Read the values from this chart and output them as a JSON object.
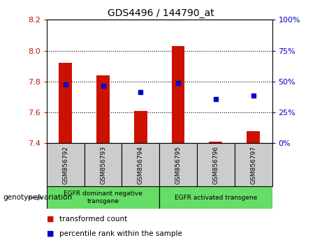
{
  "title": "GDS4496 / 144790_at",
  "samples": [
    "GSM856792",
    "GSM856793",
    "GSM856794",
    "GSM856795",
    "GSM856796",
    "GSM856797"
  ],
  "bar_base": 7.4,
  "bar_tops": [
    7.92,
    7.84,
    7.61,
    8.03,
    7.41,
    7.48
  ],
  "blue_dots": [
    7.78,
    7.77,
    7.73,
    7.79,
    7.685,
    7.71
  ],
  "ylim": [
    7.4,
    8.2
  ],
  "y_ticks_left": [
    7.4,
    7.6,
    7.8,
    8.0,
    8.2
  ],
  "y_ticks_right": [
    0,
    25,
    50,
    75,
    100
  ],
  "bar_color": "#cc1100",
  "dot_color": "#0000cc",
  "group1_label": "EGFR dominant negative\ntransgene",
  "group2_label": "EGFR activated transgene",
  "group_color": "#66dd66",
  "legend_items": [
    {
      "color": "#cc1100",
      "label": "transformed count"
    },
    {
      "color": "#0000cc",
      "label": "percentile rank within the sample"
    }
  ],
  "genotype_label": "genotype/variation",
  "tick_label_color_left": "#cc1100",
  "tick_label_color_right": "#0000cc",
  "bar_width": 0.35,
  "sample_box_color": "#cccccc"
}
